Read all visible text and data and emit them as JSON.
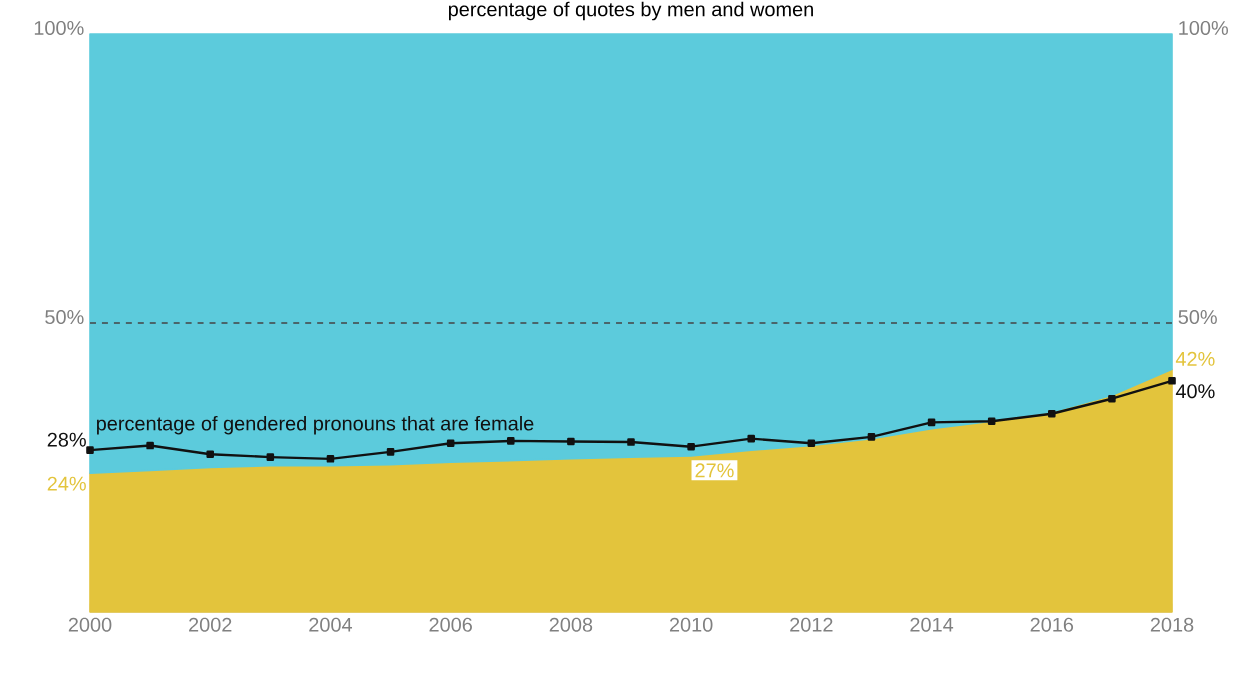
{
  "chart_data": {
    "type": "area",
    "title": "percentage of quotes by men and women",
    "stacked": true,
    "grid": false,
    "x": [
      2000,
      2001,
      2002,
      2003,
      2004,
      2005,
      2006,
      2007,
      2008,
      2009,
      2010,
      2011,
      2012,
      2013,
      2014,
      2015,
      2016,
      2017,
      2018
    ],
    "xlim": [
      2000,
      2018
    ],
    "xticks": [
      2000,
      2002,
      2004,
      2006,
      2008,
      2010,
      2012,
      2014,
      2016,
      2018
    ],
    "ylim": [
      0,
      100
    ],
    "yticks": [
      {
        "value": 50,
        "label": "50%"
      },
      {
        "value": 100,
        "label": "100%"
      }
    ],
    "y2lim": [
      0,
      100
    ],
    "y2ticks": [
      {
        "value": 50,
        "label": "50%"
      },
      {
        "value": 100,
        "label": "100%"
      }
    ],
    "series": [
      {
        "color": "#e3c43c",
        "values": [
          24,
          24.5,
          25,
          25.3,
          25.3,
          25.5,
          25.9,
          26.2,
          26.5,
          26.8,
          27,
          28,
          28.8,
          30,
          31.7,
          33,
          34.6,
          37.5,
          42
        ],
        "value_labels": [
          "24%",
          null,
          null,
          null,
          null,
          null,
          null,
          null,
          null,
          null,
          "27%",
          null,
          null,
          null,
          null,
          null,
          null,
          null,
          "42%"
        ]
      },
      {
        "color": "#5ccbdc",
        "values": [
          76,
          75.5,
          75,
          74.7,
          74.7,
          74.5,
          74.1,
          73.8,
          73.5,
          73.2,
          73,
          72,
          71.2,
          70,
          68.3,
          67,
          65.4,
          62.5,
          58
        ]
      },
      {
        "type": "line",
        "name": "percentage of gendered pronouns that are female",
        "color": "#111111",
        "marker": "square",
        "line_style": "solid",
        "values": [
          28,
          28.8,
          27.3,
          26.8,
          26.5,
          27.7,
          29.2,
          29.6,
          29.5,
          29.4,
          28.6,
          30,
          29.2,
          30.3,
          32.8,
          33,
          34.3,
          36.9,
          40
        ],
        "value_labels": [
          "28%",
          null,
          null,
          null,
          null,
          null,
          null,
          null,
          null,
          null,
          null,
          null,
          null,
          null,
          null,
          null,
          null,
          null,
          "40%"
        ]
      }
    ],
    "ref_lines": [
      {
        "axis": "y",
        "value": 50,
        "color": "#444444",
        "line_style": "dashed"
      }
    ]
  }
}
